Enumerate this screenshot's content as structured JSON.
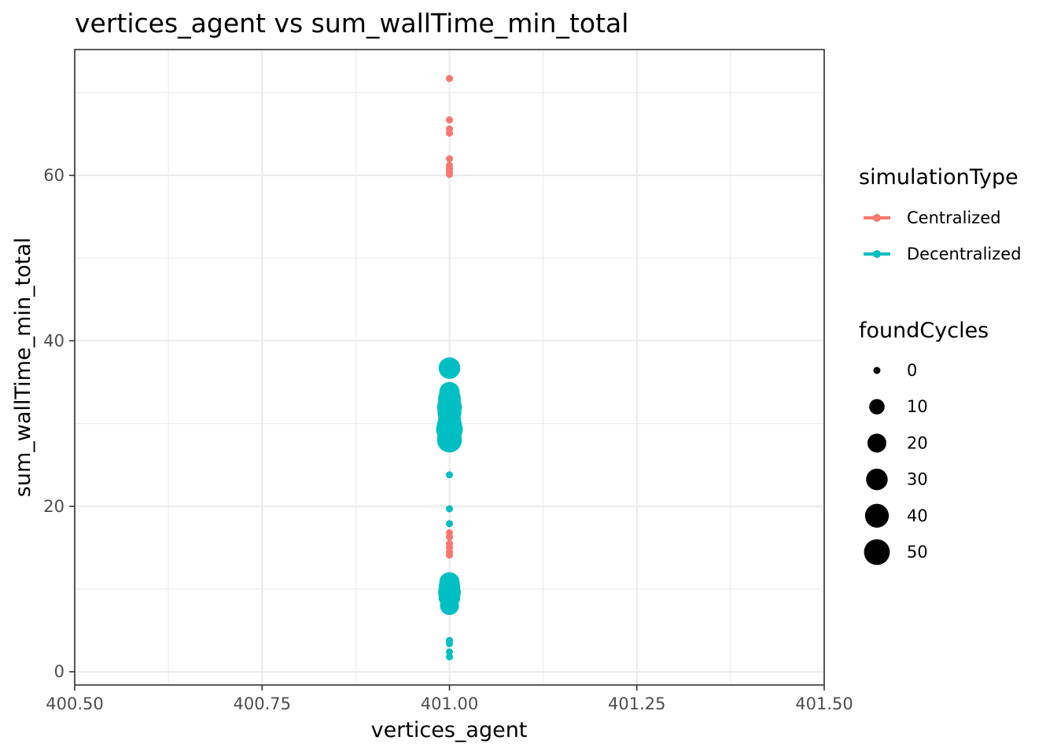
{
  "chart_data": {
    "type": "scatter",
    "title": "vertices_agent  vs  sum_wallTime_min_total",
    "xlabel": "vertices_agent",
    "ylabel": "sum_wallTime_min_total",
    "xlim": [
      400.5,
      401.5
    ],
    "ylim": [
      -1.6,
      75.2
    ],
    "x_ticks": [
      400.5,
      400.75,
      401.0,
      401.25,
      401.5
    ],
    "x_tick_labels": [
      "400.50",
      "400.75",
      "401.00",
      "401.25",
      "401.50"
    ],
    "y_ticks": [
      0,
      20,
      40,
      60
    ],
    "y_tick_labels": [
      "0",
      "20",
      "40",
      "60"
    ],
    "grid": true,
    "legend_position": "right",
    "color_legend": {
      "title": "simulationType",
      "entries": [
        {
          "label": "Centralized",
          "color": "#F8766D"
        },
        {
          "label": "Decentralized",
          "color": "#00BFC4"
        }
      ]
    },
    "size_legend": {
      "title": "foundCycles",
      "values": [
        0,
        10,
        20,
        30,
        40,
        50
      ],
      "labels": [
        "0",
        "10",
        "20",
        "30",
        "40",
        "50"
      ]
    },
    "series": [
      {
        "name": "Centralized",
        "color": "#F8766D",
        "points": [
          {
            "x": 401,
            "y": 71.7,
            "size": 0
          },
          {
            "x": 401,
            "y": 66.7,
            "size": 0
          },
          {
            "x": 401,
            "y": 65.6,
            "size": 0
          },
          {
            "x": 401,
            "y": 65.1,
            "size": 0
          },
          {
            "x": 401,
            "y": 62.0,
            "size": 0
          },
          {
            "x": 401,
            "y": 61.2,
            "size": 0
          },
          {
            "x": 401,
            "y": 60.8,
            "size": 0
          },
          {
            "x": 401,
            "y": 60.4,
            "size": 0
          },
          {
            "x": 401,
            "y": 60.1,
            "size": 0
          },
          {
            "x": 401,
            "y": 16.8,
            "size": 0
          },
          {
            "x": 401,
            "y": 16.3,
            "size": 0
          },
          {
            "x": 401,
            "y": 15.5,
            "size": 0
          },
          {
            "x": 401,
            "y": 15.0,
            "size": 0
          },
          {
            "x": 401,
            "y": 14.5,
            "size": 0
          },
          {
            "x": 401,
            "y": 14.1,
            "size": 0
          }
        ]
      },
      {
        "name": "Decentralized",
        "color": "#00BFC4",
        "points": [
          {
            "x": 401,
            "y": 36.7,
            "size": 30
          },
          {
            "x": 401,
            "y": 33.8,
            "size": 25
          },
          {
            "x": 401,
            "y": 33.0,
            "size": 35
          },
          {
            "x": 401,
            "y": 32.0,
            "size": 45
          },
          {
            "x": 401,
            "y": 31.3,
            "size": 40
          },
          {
            "x": 401,
            "y": 30.5,
            "size": 35
          },
          {
            "x": 401,
            "y": 29.8,
            "size": 45
          },
          {
            "x": 401,
            "y": 29.3,
            "size": 55
          },
          {
            "x": 401,
            "y": 28.5,
            "size": 40
          },
          {
            "x": 401,
            "y": 28.0,
            "size": 45
          },
          {
            "x": 401,
            "y": 23.8,
            "size": 0
          },
          {
            "x": 401,
            "y": 19.7,
            "size": 0
          },
          {
            "x": 401,
            "y": 17.9,
            "size": 0
          },
          {
            "x": 401,
            "y": 10.8,
            "size": 25
          },
          {
            "x": 401,
            "y": 10.2,
            "size": 30
          },
          {
            "x": 401,
            "y": 9.6,
            "size": 35
          },
          {
            "x": 401,
            "y": 9.0,
            "size": 30
          },
          {
            "x": 401,
            "y": 8.0,
            "size": 20
          },
          {
            "x": 401,
            "y": 3.8,
            "size": 0
          },
          {
            "x": 401,
            "y": 3.4,
            "size": 0
          },
          {
            "x": 401,
            "y": 2.4,
            "size": 0
          },
          {
            "x": 401,
            "y": 1.8,
            "size": 0
          }
        ]
      }
    ]
  }
}
